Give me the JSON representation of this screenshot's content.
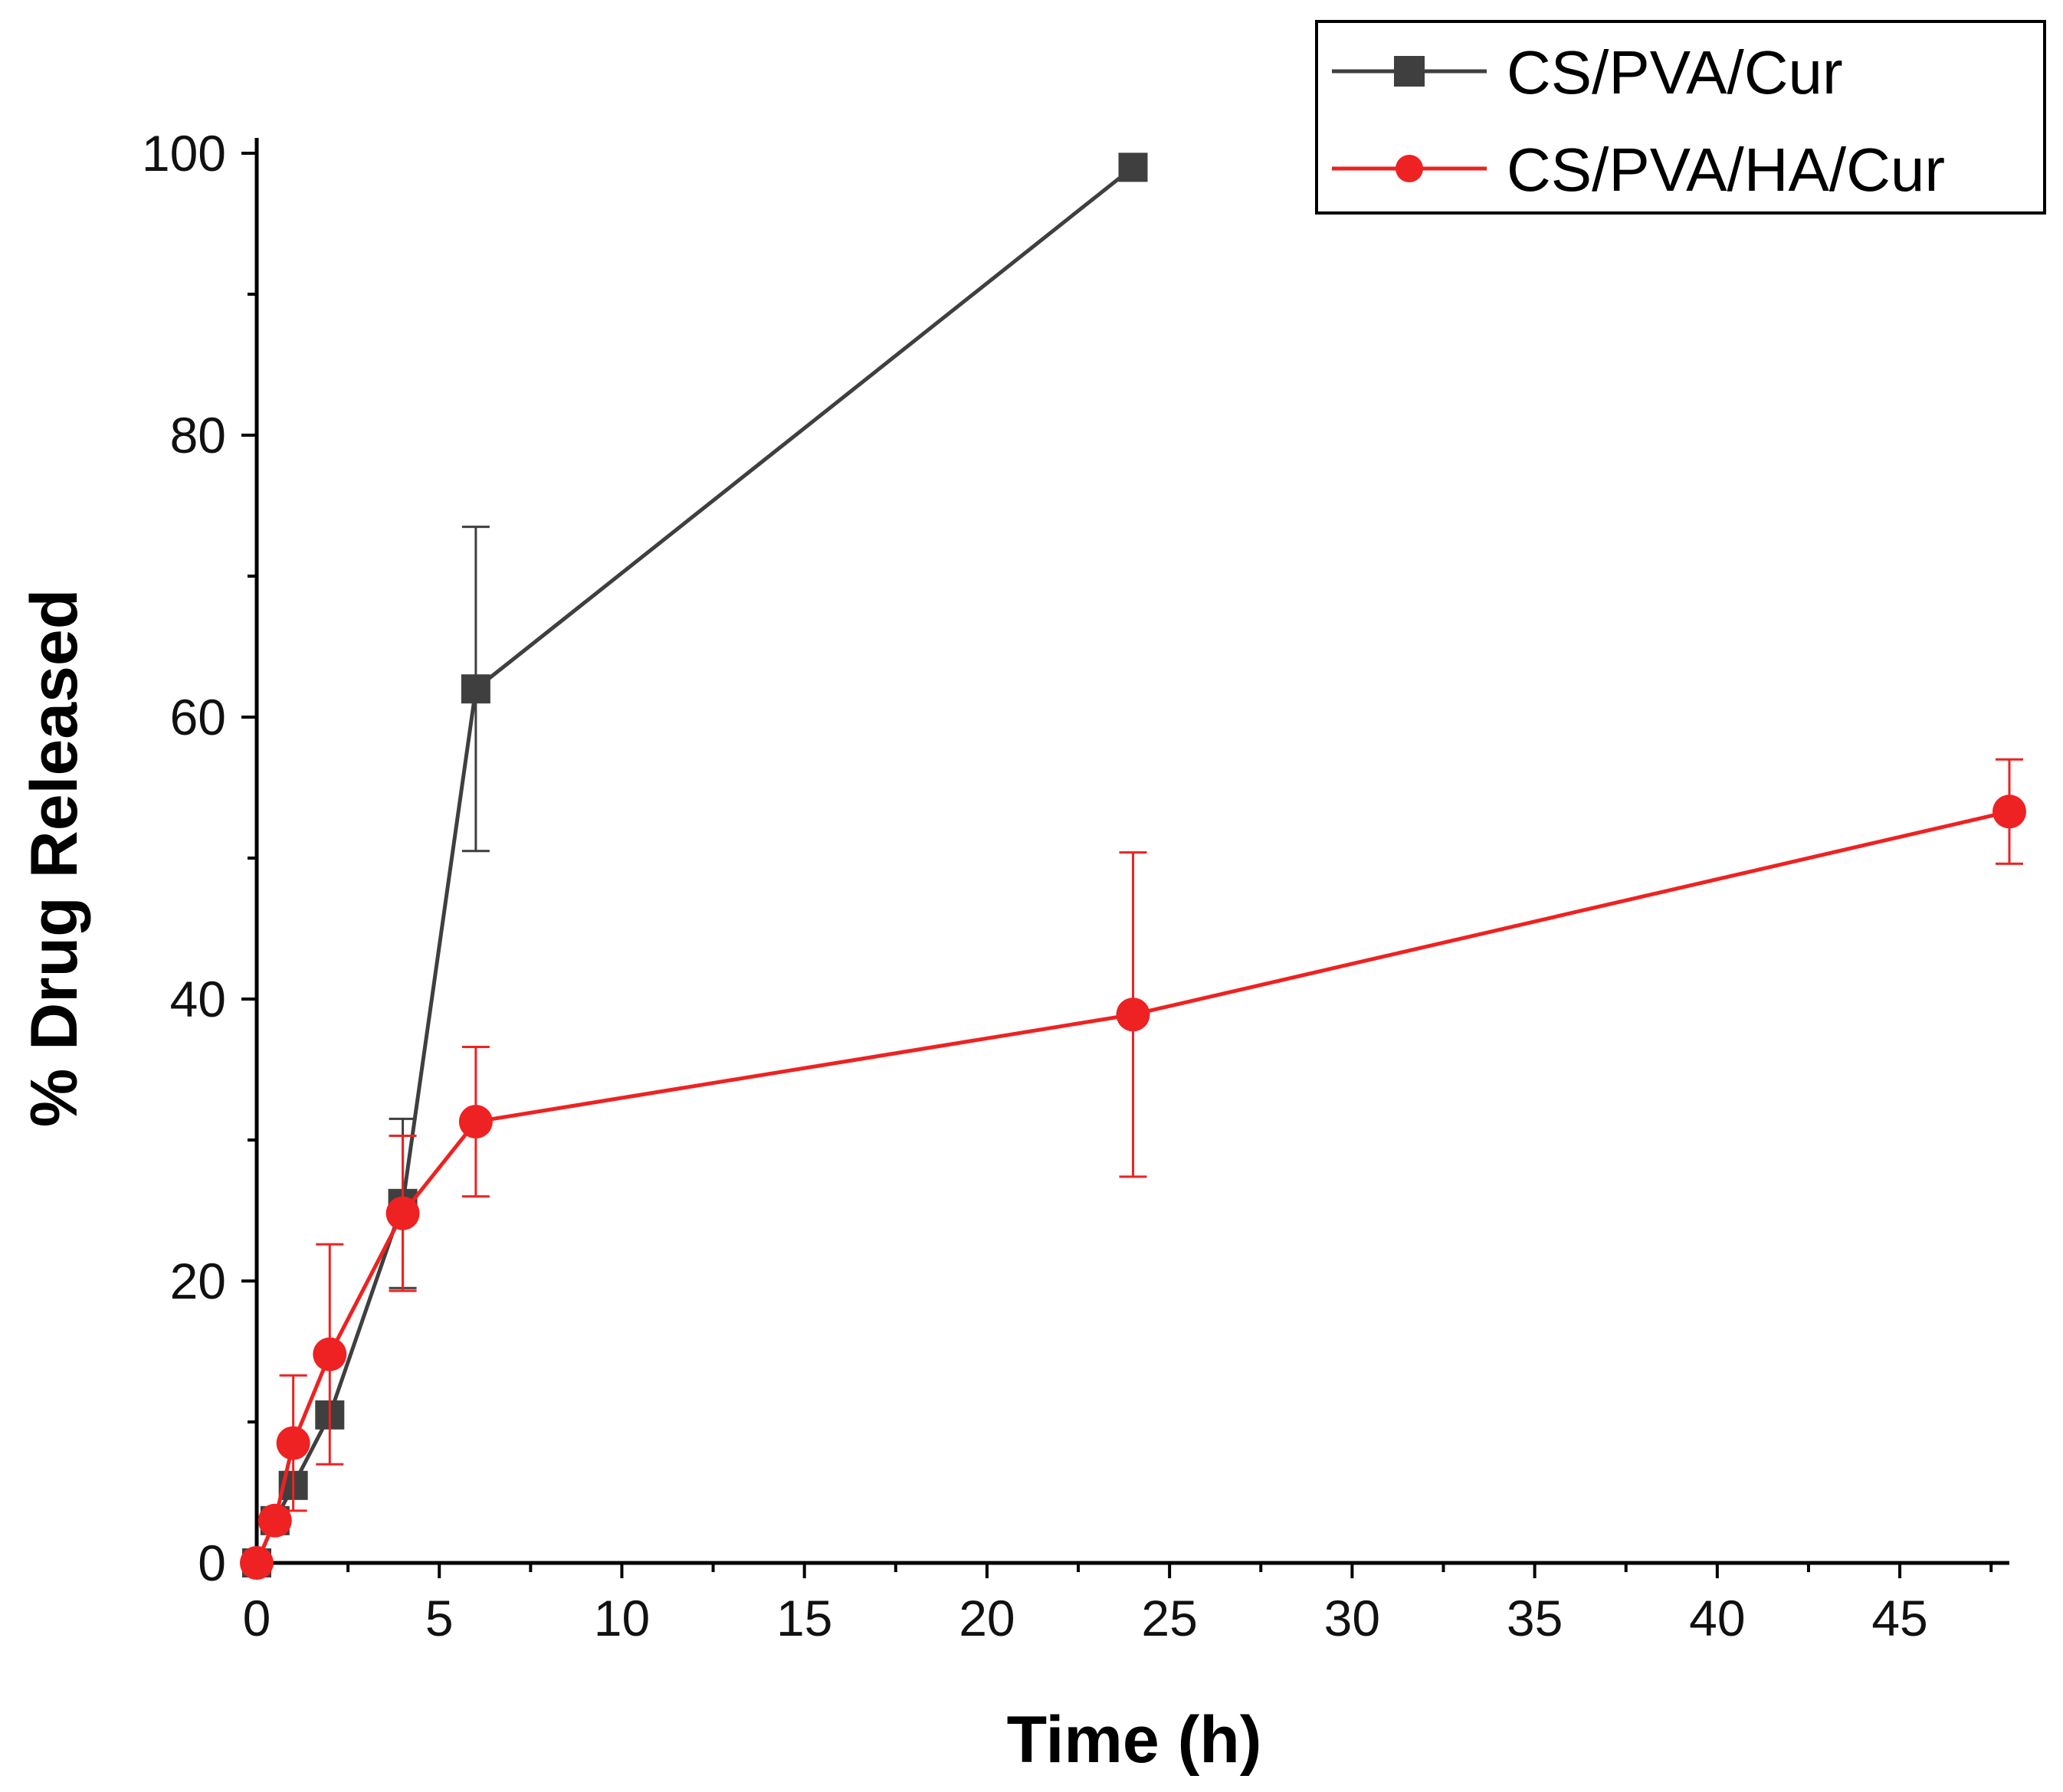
{
  "chart_data": {
    "type": "line",
    "title": "",
    "xlabel": "Time (h)",
    "ylabel": "% Drug Released",
    "xlim": [
      0,
      48
    ],
    "ylim": [
      0,
      100
    ],
    "x_ticks": [
      0,
      5,
      10,
      15,
      20,
      25,
      30,
      35,
      40,
      45
    ],
    "x_tick_labels": [
      "0",
      "5",
      "10",
      "15",
      "20",
      "25",
      "30",
      "35",
      "40",
      "45"
    ],
    "x_minor_step": 2.5,
    "y_ticks": [
      0,
      20,
      40,
      60,
      80,
      100
    ],
    "y_tick_labels": [
      "0",
      "20",
      "40",
      "60",
      "80",
      "100"
    ],
    "y_minor_step": 10,
    "grid": false,
    "legend_position": "top-right",
    "series": [
      {
        "name": "CS/PVA/Cur",
        "color": "#3f3f3f",
        "marker": "square",
        "x": [
          0,
          0.5,
          1,
          2,
          4,
          6,
          24
        ],
        "y": [
          0,
          3,
          5.5,
          10.5,
          25.5,
          62,
          99
        ],
        "error": [
          0,
          0,
          0,
          0,
          6,
          11.5,
          0
        ]
      },
      {
        "name": "CS/PVA/HA/Cur",
        "color": "#ee2222",
        "marker": "circle",
        "x": [
          0,
          0.5,
          1,
          2,
          4,
          6,
          24,
          48
        ],
        "y": [
          0,
          3,
          8.5,
          14.8,
          24.8,
          31.3,
          38.9,
          53.3
        ],
        "error": [
          0,
          0,
          4.8,
          7.8,
          5.5,
          5.3,
          11.5,
          3.7
        ]
      }
    ]
  }
}
